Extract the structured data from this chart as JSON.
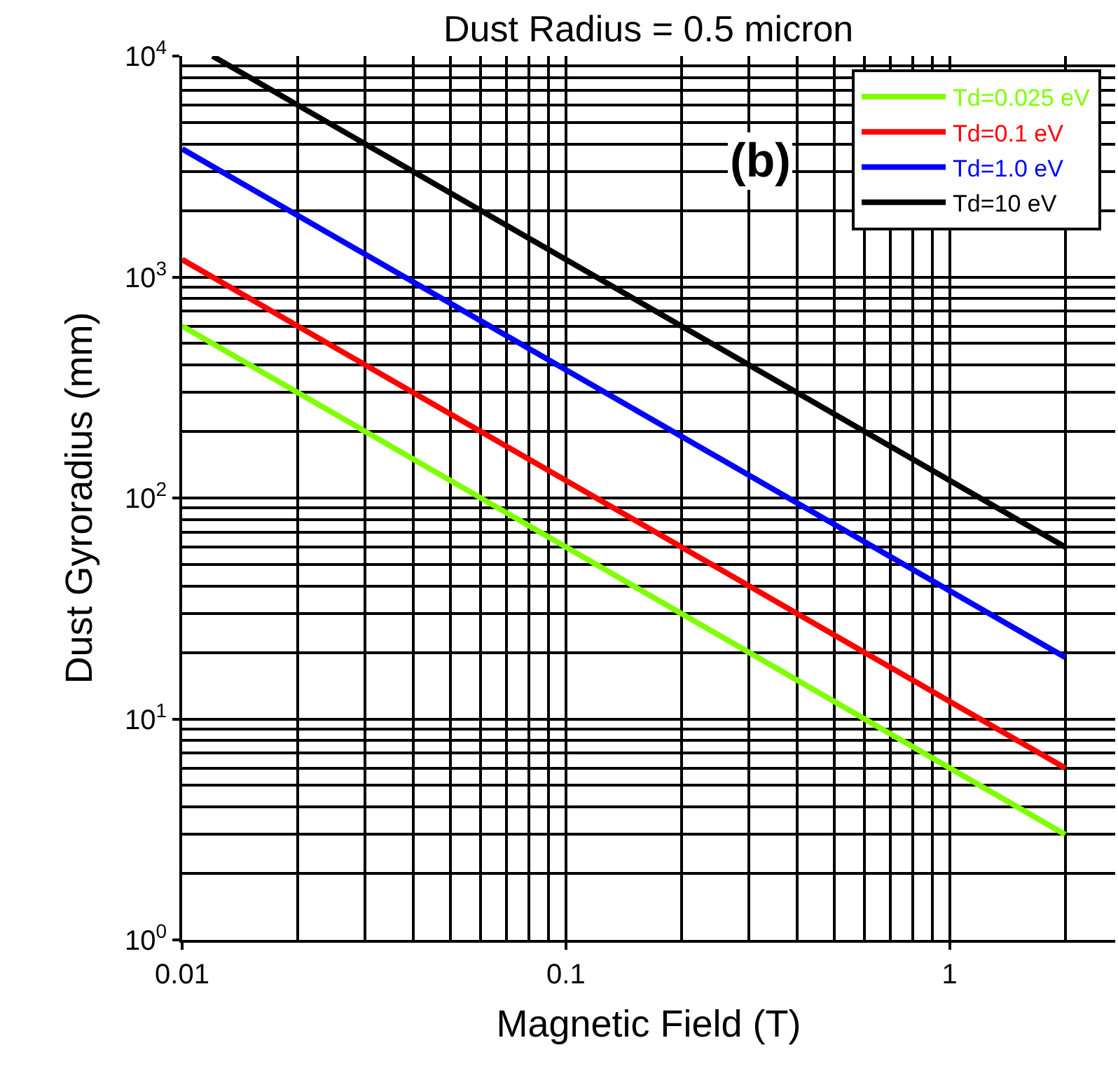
{
  "chart_data": {
    "type": "line",
    "title": "Dust Radius = 0.5 micron",
    "xlabel": "Magnetic Field (T)",
    "ylabel": "Dust Gyroradius (mm)",
    "log": "xy",
    "grid": true,
    "legend": "top right",
    "line_style": "solid",
    "marker": "none",
    "xlim": [
      0.01,
      2.7
    ],
    "ylim": [
      1,
      10000
    ],
    "xticks": [
      0.01,
      0.1,
      1
    ],
    "yticks": [
      {
        "value": 1,
        "label": "10$^{0}$"
      },
      {
        "value": 10,
        "label": "10$^{1}$"
      },
      {
        "value": 100,
        "label": "10$^{2}$"
      },
      {
        "value": 1000,
        "label": "10$^{3}$"
      },
      {
        "value": 10000,
        "label": "10$^{4}$"
      }
    ],
    "annotations": [
      "(b)"
    ],
    "series": [
      {
        "name": "Td=0.025 eV",
        "color": "#80ff00",
        "x": [
          0.01,
          2
        ],
        "values": [
          600,
          3
        ]
      },
      {
        "name": "Td=0.1 eV",
        "color": "#ff0000",
        "x": [
          0.01,
          2
        ],
        "values": [
          1200,
          6
        ]
      },
      {
        "name": "Td=1.0 eV",
        "color": "#0000ff",
        "x": [
          0.01,
          2
        ],
        "values": [
          3800,
          19
        ]
      },
      {
        "name": "Td=10 eV",
        "color": "#000000",
        "x": [
          0.012,
          2
        ],
        "values": [
          10000,
          60
        ]
      }
    ]
  }
}
